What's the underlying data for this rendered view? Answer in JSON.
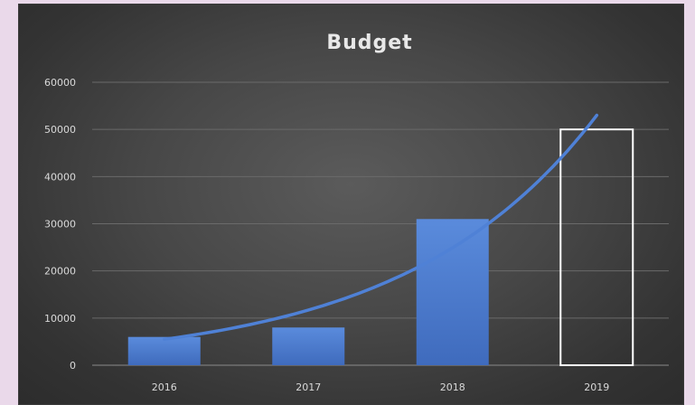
{
  "chart_data": {
    "type": "bar",
    "title": "Budget",
    "categories": [
      "2016",
      "2017",
      "2018",
      "2019"
    ],
    "series": [
      {
        "values": [
          6000,
          8000,
          31000,
          50000
        ],
        "style": [
          "filled",
          "filled",
          "filled",
          "outline"
        ]
      }
    ],
    "trendline": {
      "type": "exponential",
      "values": [
        5500,
        11000,
        24000,
        53000
      ]
    },
    "ylim": [
      0,
      60000
    ],
    "yticks": [
      "0",
      "10000",
      "20000",
      "30000",
      "40000",
      "50000",
      "60000"
    ],
    "grid": true,
    "legend": "none",
    "colors": {
      "bar": "#4472c4",
      "bar_light": "#5b8ad6",
      "trend": "#4f81d6",
      "outline": "#ffffff",
      "grid": "#6a6a6a",
      "text": "#d9d9d9",
      "title": "#e8e8e8"
    }
  }
}
